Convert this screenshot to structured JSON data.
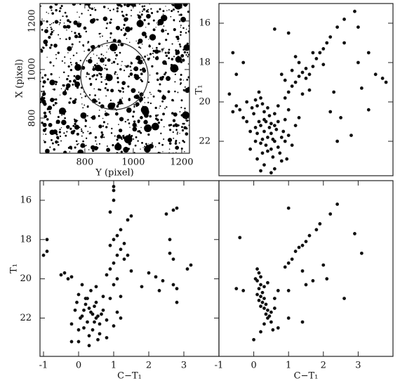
{
  "chart_data": [
    {
      "type": "image",
      "xlabel": "Y (pixel)",
      "ylabel": "X (pixel)",
      "xlim": [
        615,
        1232
      ],
      "ylim": [
        655,
        1272
      ],
      "xticks": [
        800,
        1000,
        1200
      ],
      "yticks": [
        800,
        1000,
        1200
      ]
    },
    {
      "type": "scatter",
      "ylabel": "T₁",
      "xlim": [
        -1,
        4
      ],
      "ylim": [
        23.75,
        15
      ],
      "yticks": [
        16,
        18,
        20,
        22
      ],
      "color": "#111111",
      "x": [
        0.2,
        0.3,
        0.4,
        0.5,
        0.6,
        0.35,
        0.45,
        0.55,
        0.25,
        0.65,
        0.7,
        0.15,
        0.3,
        0.4,
        0.5,
        0.6,
        0.8,
        0.9,
        0.75,
        0.2,
        0.1,
        0.05,
        0.35,
        0.45,
        0.55,
        0.85,
        1.0,
        1.1,
        0.25,
        0.05,
        -0.1,
        -0.2,
        0.0,
        0.1,
        0.2,
        0.15,
        0.25,
        0.3,
        0.05,
        -0.05,
        -0.3,
        -0.4,
        -0.5,
        -0.6,
        -0.2,
        0.4,
        0.6,
        0.7,
        0.9,
        1.0,
        0.8,
        0.3,
        0.6,
        0.95,
        1.2,
        1.3,
        0.1,
        -0.1,
        0.7,
        0.5,
        0.9,
        1.0,
        1.1,
        1.2,
        1.3,
        1.4,
        1.5,
        1.6,
        1.7,
        1.5,
        1.8,
        1.9,
        2.0,
        2.1,
        2.2,
        2.4,
        2.6,
        2.9,
        1.3,
        1.1,
        0.9,
        1.6,
        1.4,
        0.8,
        1.7,
        2.0,
        1.2,
        0.6,
        1.0,
        -0.6,
        -0.5,
        -0.7,
        -0.3,
        2.3,
        2.5,
        2.8,
        2.4,
        3.0,
        3.0,
        3.1,
        3.3,
        3.5,
        3.7,
        3.8,
        2.6,
        2.2,
        3.3,
        0.2,
        0.5
      ],
      "y": [
        21.2,
        21.5,
        21.8,
        21.6,
        22.0,
        22.2,
        21.3,
        21.9,
        21.9,
        21.4,
        22.3,
        21.0,
        20.9,
        22.5,
        22.4,
        21.2,
        21.8,
        22.0,
        22.6,
        22.1,
        21.6,
        21.3,
        21.0,
        20.7,
        22.8,
        21.5,
        21.7,
        22.2,
        22.6,
        22.0,
        21.5,
        21.0,
        20.6,
        20.2,
        19.8,
        19.5,
        20.1,
        20.5,
        19.9,
        20.3,
        20.8,
        20.4,
        20.2,
        20.5,
        20.0,
        20.3,
        20.6,
        20.2,
        20.9,
        20.4,
        23.0,
        23.2,
        23.4,
        22.9,
        21.2,
        20.8,
        22.9,
        22.4,
        21.0,
        21.1,
        19.8,
        19.5,
        19.2,
        19.0,
        18.7,
        18.5,
        18.3,
        18.6,
        18.2,
        18.8,
        17.8,
        17.5,
        17.3,
        17.0,
        16.7,
        16.2,
        15.8,
        15.4,
        18.0,
        18.4,
        18.9,
        19.4,
        19.6,
        18.6,
        17.5,
        18.1,
        17.7,
        16.3,
        16.5,
        17.5,
        18.6,
        19.6,
        18.0,
        19.5,
        20.8,
        21.7,
        22.0,
        16.2,
        18.0,
        19.3,
        20.4,
        18.6,
        18.8,
        19.0,
        17.0,
        20.5,
        17.5,
        23.5,
        23.6
      ]
    },
    {
      "type": "scatter",
      "ylabel": "T₁",
      "xlabel": "C−T₁",
      "xlim": [
        -1.1,
        4
      ],
      "ylim": [
        23.95,
        15
      ],
      "xticks": [
        -1,
        0,
        1,
        2,
        3
      ],
      "yticks": [
        16,
        18,
        20,
        22
      ],
      "color": "#111111",
      "x": [
        -0.9,
        -1.0,
        -0.9,
        -0.5,
        -0.4,
        -0.3,
        -0.2,
        0.1,
        0.0,
        0.2,
        0.3,
        0.4,
        0.5,
        0.35,
        0.25,
        0.45,
        0.55,
        0.6,
        0.15,
        0.05,
        0.4,
        0.3,
        0.7,
        0.8,
        0.2,
        0.5,
        0.1,
        -0.1,
        -0.2,
        0.0,
        0.6,
        0.9,
        1.0,
        1.1,
        0.7,
        0.35,
        0.5,
        0.0,
        0.3,
        -0.2,
        0.8,
        1.2,
        0.25,
        0.45,
        0.65,
        0.15,
        -0.05,
        0.55,
        1.0,
        1.2,
        0.9,
        1.0,
        1.1,
        1.2,
        1.0,
        1.1,
        1.2,
        1.4,
        1.5,
        1.0,
        1.0,
        1.0,
        0.9,
        1.3,
        1.4,
        0.8,
        1.5,
        1.3,
        0.9,
        1.1,
        2.5,
        2.7,
        2.8,
        2.6,
        2.6,
        2.7,
        2.2,
        2.4,
        2.3,
        2.8,
        2.8,
        3.1,
        3.2,
        2.7,
        1.8,
        2.0
      ],
      "y": [
        18.0,
        18.8,
        18.6,
        19.8,
        19.7,
        20.0,
        19.9,
        20.3,
        20.8,
        21.0,
        21.5,
        21.8,
        22.0,
        21.7,
        22.2,
        21.4,
        21.9,
        22.3,
        21.6,
        22.0,
        22.6,
        22.9,
        21.6,
        22.1,
        21.3,
        21.2,
        21.9,
        21.6,
        22.3,
        22.6,
        22.8,
        21.0,
        22.4,
        21.7,
        20.9,
        20.6,
        20.4,
        23.2,
        23.4,
        23.2,
        23.0,
        22.0,
        21.0,
        22.2,
        21.8,
        22.5,
        21.2,
        23.1,
        20.3,
        20.9,
        19.5,
        19.2,
        18.8,
        18.5,
        18.0,
        17.8,
        17.5,
        17.0,
        16.8,
        16.0,
        15.5,
        15.3,
        16.6,
        18.2,
        18.8,
        19.8,
        19.6,
        19.0,
        18.3,
        20.0,
        16.7,
        16.5,
        16.4,
        18.0,
        18.7,
        19.0,
        19.9,
        20.1,
        20.6,
        20.5,
        21.2,
        19.5,
        19.3,
        20.3,
        20.4,
        19.7
      ]
    },
    {
      "type": "scatter",
      "xlabel": "C−T₁",
      "xlim": [
        -1,
        4
      ],
      "ylim": [
        23.95,
        15
      ],
      "xticks": [
        -1,
        0,
        1,
        2,
        3
      ],
      "color": "#111111",
      "x": [
        0.1,
        0.15,
        0.2,
        0.1,
        0.2,
        0.15,
        0.25,
        0.2,
        0.3,
        0.25,
        0.35,
        0.3,
        0.4,
        0.35,
        0.45,
        0.2,
        0.3,
        0.1,
        0.4,
        0.5,
        0.3,
        0.5,
        0.6,
        0.7,
        0.55,
        0.6,
        0.15,
        0.05,
        0.4,
        0.7,
        1.0,
        1.4,
        1.0,
        0.2,
        0.0,
        -0.3,
        -0.5,
        -0.4,
        0.9,
        1.0,
        1.1,
        1.2,
        1.4,
        1.5,
        1.3,
        1.6,
        1.8,
        1.9,
        2.2,
        2.4,
        1.0,
        1.4,
        1.5,
        1.7,
        2.1,
        2.0,
        2.6,
        2.9,
        3.1
      ],
      "y": [
        19.5,
        19.7,
        19.9,
        20.1,
        20.3,
        20.5,
        20.7,
        20.9,
        21.0,
        21.2,
        21.3,
        21.5,
        21.6,
        21.8,
        21.9,
        21.4,
        20.4,
        20.8,
        22.0,
        22.2,
        22.3,
        21.7,
        21.0,
        20.6,
        22.6,
        21.5,
        21.1,
        20.0,
        20.2,
        22.5,
        22.0,
        22.2,
        20.6,
        22.7,
        23.1,
        20.6,
        20.5,
        17.9,
        19.4,
        19.2,
        19.0,
        18.6,
        18.3,
        18.1,
        18.4,
        17.8,
        17.5,
        17.2,
        16.7,
        16.2,
        16.4,
        19.6,
        20.3,
        20.1,
        20.0,
        19.3,
        21.0,
        17.7,
        18.7
      ]
    }
  ]
}
